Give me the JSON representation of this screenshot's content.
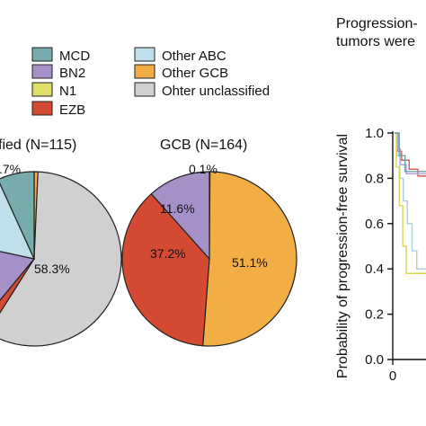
{
  "chart_data": [
    {
      "type": "pie",
      "title": "fied (N=115)",
      "slice_order": [
        "MCD",
        "Other ABC",
        "BN2",
        "N1",
        "EZB",
        "Other GCB",
        "Ohter unclassified"
      ],
      "slices": [
        {
          "label": "Ohter unclassified",
          "value": 58.3,
          "display": "58.3%"
        },
        {
          "label": "EZB",
          "value": 2.0,
          "display": ""
        },
        {
          "label": "BN2",
          "value": 17.4,
          "display": ""
        },
        {
          "label": "Other ABC",
          "value": 14.8,
          "display": ""
        },
        {
          "label": "MCD",
          "value": 6.8,
          "display": ""
        },
        {
          "label": "Other GCB",
          "value": 0.7,
          "display": ".7%"
        }
      ]
    },
    {
      "type": "pie",
      "title": "GCB (N=164)",
      "slices": [
        {
          "label": "Other GCB",
          "value": 51.1,
          "display": "51.1%"
        },
        {
          "label": "EZB",
          "value": 37.2,
          "display": "37.2%"
        },
        {
          "label": "BN2",
          "value": 11.6,
          "display": "11.6%"
        },
        {
          "label": "MCD",
          "value": 0.1,
          "display": "0.1%"
        }
      ]
    },
    {
      "type": "line",
      "title_lines": [
        "Progression-",
        "tumors were"
      ],
      "ylabel": "Probability of progression-free survival",
      "ylim": [
        0.0,
        1.0
      ],
      "yticks": [
        "0.0",
        "0.2",
        "0.4",
        "0.6",
        "0.8",
        "1.0"
      ],
      "xticks": [
        "0"
      ],
      "series": [
        {
          "color": "#d65a5a",
          "points": [
            [
              0,
              1.0
            ],
            [
              0.5,
              1.0
            ],
            [
              0.5,
              0.92
            ],
            [
              1.2,
              0.92
            ],
            [
              1.2,
              0.88
            ],
            [
              2.5,
              0.88
            ],
            [
              2.5,
              0.84
            ],
            [
              4,
              0.84
            ],
            [
              4,
              0.81
            ],
            [
              5.5,
              0.81
            ],
            [
              5.5,
              0.78
            ]
          ]
        },
        {
          "color": "#b39ddb",
          "points": [
            [
              0,
              1.0
            ],
            [
              0.6,
              1.0
            ],
            [
              0.6,
              0.93
            ],
            [
              1.0,
              0.93
            ],
            [
              1.0,
              0.86
            ],
            [
              2.0,
              0.86
            ],
            [
              2.0,
              0.82
            ],
            [
              5.5,
              0.82
            ]
          ]
        },
        {
          "color": "#a9cfe0",
          "points": [
            [
              0,
              1.0
            ],
            [
              0.4,
              1.0
            ],
            [
              0.4,
              0.9
            ],
            [
              0.9,
              0.9
            ],
            [
              0.9,
              0.8
            ],
            [
              1.5,
              0.8
            ],
            [
              1.5,
              0.7
            ],
            [
              2.2,
              0.7
            ],
            [
              2.2,
              0.6
            ],
            [
              3,
              0.6
            ],
            [
              3,
              0.48
            ],
            [
              3.8,
              0.48
            ],
            [
              3.8,
              0.4
            ],
            [
              5.5,
              0.4
            ]
          ]
        },
        {
          "color": "#d9d94a",
          "points": [
            [
              0,
              1.0
            ],
            [
              0.3,
              1.0
            ],
            [
              0.3,
              0.85
            ],
            [
              0.8,
              0.85
            ],
            [
              0.8,
              0.68
            ],
            [
              1.4,
              0.68
            ],
            [
              1.4,
              0.5
            ],
            [
              2.0,
              0.5
            ],
            [
              2.0,
              0.38
            ],
            [
              5.5,
              0.38
            ]
          ]
        },
        {
          "color": "#6aa6a6",
          "points": [
            [
              0,
              1.0
            ],
            [
              0.8,
              1.0
            ],
            [
              0.8,
              0.9
            ],
            [
              1.8,
              0.9
            ],
            [
              1.8,
              0.83
            ],
            [
              5.5,
              0.83
            ]
          ]
        }
      ]
    }
  ],
  "legend": [
    {
      "label": "MCD",
      "color": "#78abab"
    },
    {
      "label": "Other ABC",
      "color": "#bfe0ea"
    },
    {
      "label": "BN2",
      "color": "#a591c8"
    },
    {
      "label": "Other GCB",
      "color": "#f3ad45"
    },
    {
      "label": "N1",
      "color": "#dede6a"
    },
    {
      "label": "EZB",
      "color": "#d44a33"
    },
    {
      "label": "Ohter unclassified",
      "color": "#d0d0d0"
    }
  ],
  "colors": {
    "MCD": "#78abab",
    "Other ABC": "#bfe0ea",
    "BN2": "#a591c8",
    "Other GCB": "#f3ad45",
    "N1": "#dede6a",
    "EZB": "#d44a33",
    "Ohter unclassified": "#d0d0d0"
  }
}
